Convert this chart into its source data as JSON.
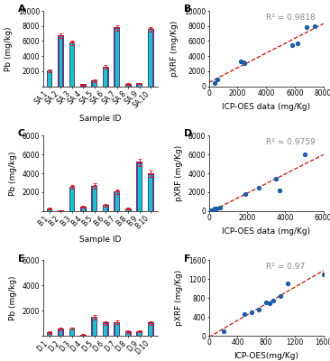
{
  "panel_A": {
    "labels": [
      "SA.1",
      "SA.2",
      "SA.3",
      "SA.4",
      "SA.5",
      "SA.6",
      "SA.7",
      "SA.8",
      "SA.9",
      "SA.10"
    ],
    "icp": [
      2100,
      6800,
      5800,
      300,
      800,
      2600,
      7800,
      350,
      400,
      7600
    ],
    "pxrf": [
      2000,
      6600,
      5700,
      150,
      700,
      2500,
      7600,
      200,
      350,
      7500
    ],
    "icp_err": [
      150,
      200,
      250,
      50,
      100,
      200,
      300,
      50,
      50,
      250
    ],
    "pxrf_err": [
      100,
      150,
      200,
      30,
      80,
      150,
      250,
      40,
      40,
      200
    ],
    "ylim": [
      0,
      10000
    ],
    "yticks": [
      0,
      2000,
      4000,
      6000,
      8000,
      10000
    ]
  },
  "panel_B": {
    "icp_x": [
      400,
      600,
      2200,
      2400,
      2500,
      5800,
      6200,
      6800,
      7400
    ],
    "pxrf_y": [
      500,
      900,
      3300,
      3200,
      3100,
      5500,
      5700,
      7800,
      8000
    ],
    "r2": "0.9818",
    "xlim": [
      0,
      8000
    ],
    "ylim": [
      0,
      10000
    ],
    "xticks": [
      0,
      2000,
      4000,
      6000,
      8000
    ],
    "yticks": [
      0,
      2000,
      4000,
      6000,
      8000,
      10000
    ],
    "xlabel": "ICP-OES data (mg/Kg)",
    "ylabel": "pXRF (mg/Kg)"
  },
  "panel_C": {
    "labels": [
      "B.1",
      "B.2",
      "B.3",
      "B.4",
      "B.5",
      "B.6",
      "B.7",
      "B.8",
      "B.9",
      "B.10"
    ],
    "icp": [
      300,
      80,
      2600,
      500,
      2700,
      650,
      2100,
      300,
      5200,
      4000
    ],
    "pxrf": [
      200,
      60,
      2500,
      400,
      2600,
      550,
      2000,
      200,
      5000,
      3800
    ],
    "icp_err": [
      50,
      20,
      200,
      80,
      250,
      100,
      200,
      50,
      300,
      250
    ],
    "pxrf_err": [
      30,
      15,
      150,
      60,
      200,
      80,
      150,
      30,
      250,
      200
    ],
    "ylim": [
      0,
      8000
    ],
    "yticks": [
      0,
      2000,
      4000,
      6000,
      8000
    ]
  },
  "panel_D": {
    "icp_x": [
      80,
      150,
      300,
      400,
      600,
      1900,
      2600,
      3500,
      3700,
      5000
    ],
    "pxrf_y": [
      80,
      120,
      250,
      300,
      400,
      1800,
      2500,
      3400,
      2200,
      6000
    ],
    "r2": "0.9759",
    "xlim": [
      0,
      6000
    ],
    "ylim": [
      0,
      8000
    ],
    "xticks": [
      0,
      2000,
      4000,
      6000
    ],
    "yticks": [
      0,
      2000,
      4000,
      6000,
      8000
    ],
    "xlabel": "ICP-OES data (mg/Kg)",
    "ylabel": "pXRF (mg/Kg)"
  },
  "panel_E": {
    "labels": [
      "D.1",
      "D.2",
      "D.3",
      "D.4",
      "D.5",
      "D.6",
      "D.7",
      "D.8",
      "D.9",
      "D.10"
    ],
    "icp": [
      300,
      600,
      600,
      100,
      1500,
      1050,
      1100,
      350,
      350,
      1050
    ],
    "pxrf": [
      200,
      500,
      550,
      80,
      1400,
      950,
      1000,
      280,
      300,
      950
    ],
    "icp_err": [
      50,
      80,
      80,
      20,
      150,
      100,
      100,
      50,
      50,
      100
    ],
    "pxrf_err": [
      30,
      60,
      60,
      15,
      120,
      80,
      80,
      40,
      40,
      80
    ],
    "ylim": [
      0,
      6000
    ],
    "yticks": [
      0,
      2000,
      4000,
      6000
    ]
  },
  "panel_F": {
    "icp_x": [
      200,
      500,
      600,
      700,
      800,
      850,
      900,
      1000,
      1100,
      1600
    ],
    "pxrf_y": [
      100,
      450,
      500,
      550,
      700,
      680,
      750,
      850,
      1100,
      1300
    ],
    "r2": "0.97",
    "xlim": [
      0,
      1600
    ],
    "ylim": [
      0,
      1600
    ],
    "xticks": [
      0,
      400,
      800,
      1200,
      1600
    ],
    "yticks": [
      0,
      400,
      800,
      1200,
      1600
    ],
    "xlabel": "ICP-OES(mg/Kg)",
    "ylabel": "pXRF (mg/Kg)"
  },
  "bar_color_icp": "#7B2D8B",
  "bar_color_pxrf": "#00CED1",
  "scatter_color": "#1A5FAD",
  "line_color": "#CC1100",
  "bg_color": "#FFFFFF",
  "label_fontsize": 6.5,
  "tick_fontsize": 5.5,
  "panel_label_fontsize": 8
}
